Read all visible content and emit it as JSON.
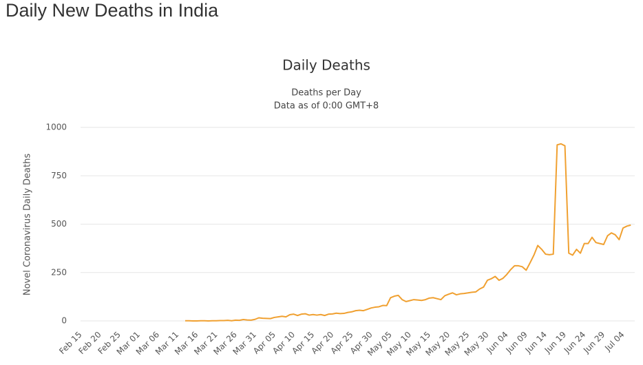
{
  "header": {
    "title": "Daily New Deaths in India"
  },
  "chart_data": {
    "type": "line",
    "title": "Daily Deaths",
    "subtitle": [
      "Deaths per Day",
      "Data as of 0:00 GMT+8"
    ],
    "y_axis_label": "Novel Coronavirus Daily Deaths",
    "categories": [
      "Feb 15",
      null,
      null,
      null,
      null,
      "Feb 20",
      null,
      null,
      null,
      null,
      "Feb 25",
      null,
      null,
      null,
      null,
      "Mar 01",
      null,
      null,
      null,
      null,
      "Mar 06",
      null,
      null,
      null,
      null,
      "Mar 11",
      null,
      null,
      null,
      null,
      "Mar 16",
      null,
      null,
      null,
      null,
      "Mar 21",
      null,
      null,
      null,
      null,
      "Mar 26",
      null,
      null,
      null,
      null,
      "Mar 31",
      null,
      null,
      null,
      null,
      "Apr 05",
      null,
      null,
      null,
      null,
      "Apr 10",
      null,
      null,
      null,
      null,
      "Apr 15",
      null,
      null,
      null,
      null,
      "Apr 20",
      null,
      null,
      null,
      null,
      "Apr 25",
      null,
      null,
      null,
      null,
      "Apr 30",
      null,
      null,
      null,
      null,
      "May 05",
      null,
      null,
      null,
      null,
      "May 10",
      null,
      null,
      null,
      null,
      "May 15",
      null,
      null,
      null,
      null,
      "May 20",
      null,
      null,
      null,
      null,
      "May 25",
      null,
      null,
      null,
      null,
      "May 30",
      null,
      null,
      null,
      null,
      "Jun 04",
      null,
      null,
      null,
      null,
      "Jun 09",
      null,
      null,
      null,
      null,
      "Jun 14",
      null,
      null,
      null,
      null,
      "Jun 19",
      null,
      null,
      null,
      null,
      "Jun 24",
      null,
      null,
      null,
      null,
      "Jun 29",
      null,
      null,
      null,
      null,
      "Jul 04",
      null,
      null
    ],
    "series": [
      {
        "name": "Daily Deaths",
        "color": "#f0a030",
        "values": [
          null,
          null,
          null,
          null,
          null,
          null,
          null,
          null,
          null,
          null,
          null,
          null,
          null,
          null,
          null,
          null,
          null,
          null,
          null,
          null,
          null,
          null,
          null,
          null,
          null,
          null,
          null,
          1,
          1,
          0,
          0,
          1,
          1,
          0,
          1,
          1,
          2,
          2,
          3,
          1,
          4,
          3,
          7,
          5,
          4,
          8,
          16,
          14,
          13,
          12,
          18,
          21,
          24,
          21,
          32,
          35,
          28,
          35,
          37,
          30,
          33,
          30,
          33,
          28,
          35,
          36,
          40,
          38,
          39,
          44,
          47,
          53,
          55,
          53,
          60,
          67,
          71,
          73,
          80,
          79,
          120,
          128,
          132,
          110,
          100,
          105,
          110,
          108,
          106,
          110,
          118,
          120,
          115,
          110,
          130,
          138,
          145,
          135,
          140,
          142,
          145,
          148,
          150,
          165,
          175,
          210,
          218,
          230,
          210,
          220,
          240,
          265,
          285,
          285,
          280,
          262,
          300,
          340,
          390,
          370,
          345,
          342,
          345,
          910,
          915,
          905,
          350,
          340,
          370,
          350,
          400,
          400,
          432,
          405,
          400,
          395,
          440,
          455,
          445,
          420,
          480,
          490,
          495
        ]
      }
    ],
    "ylim": [
      0,
      1000
    ],
    "yticks": [
      0,
      250,
      500,
      750,
      1000
    ],
    "grid": true
  }
}
